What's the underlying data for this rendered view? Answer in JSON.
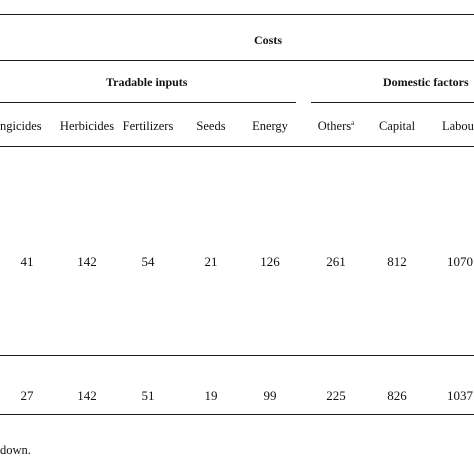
{
  "table": {
    "group_header": "Costs",
    "subgroups": [
      "Tradable inputs",
      "Domestic factors"
    ],
    "columns": [
      "ngicides",
      "Herbicides",
      "Fertilizers",
      "Seeds",
      "Energy",
      "Others",
      "Capital",
      "Labou"
    ],
    "others_footnote_mark": "a",
    "rows": [
      [
        "41",
        "142",
        "54",
        "21",
        "126",
        "261",
        "812",
        "1070"
      ],
      [
        "27",
        "142",
        "51",
        "19",
        "99",
        "225",
        "826",
        "1037"
      ]
    ]
  },
  "footnote_fragment": "down."
}
